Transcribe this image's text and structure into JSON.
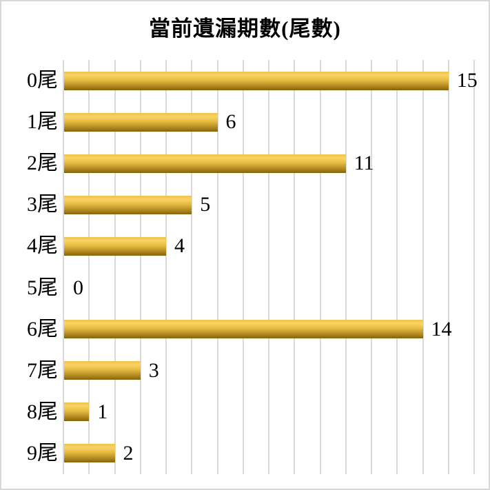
{
  "title": "當前遺漏期數(尾數)",
  "chart_data": {
    "type": "bar",
    "orientation": "horizontal",
    "title": "當前遺漏期數(尾數)",
    "categories": [
      "0尾",
      "1尾",
      "2尾",
      "3尾",
      "4尾",
      "5尾",
      "6尾",
      "7尾",
      "8尾",
      "9尾"
    ],
    "values": [
      15,
      6,
      11,
      5,
      4,
      0,
      14,
      3,
      1,
      2
    ],
    "xlabel": "",
    "ylabel": "",
    "xlim": [
      0,
      16
    ],
    "gridline_step": 1,
    "grid": true,
    "legend": false,
    "data_labels": true,
    "colors": {
      "bar_gradient": [
        "#eec24a",
        "#f7d464",
        "#e6bc41",
        "#bb9227",
        "#846408"
      ],
      "gridline": "#d9d9d9",
      "background": "#ffffff",
      "border": "#d7d7d7",
      "text": "#000000"
    }
  }
}
